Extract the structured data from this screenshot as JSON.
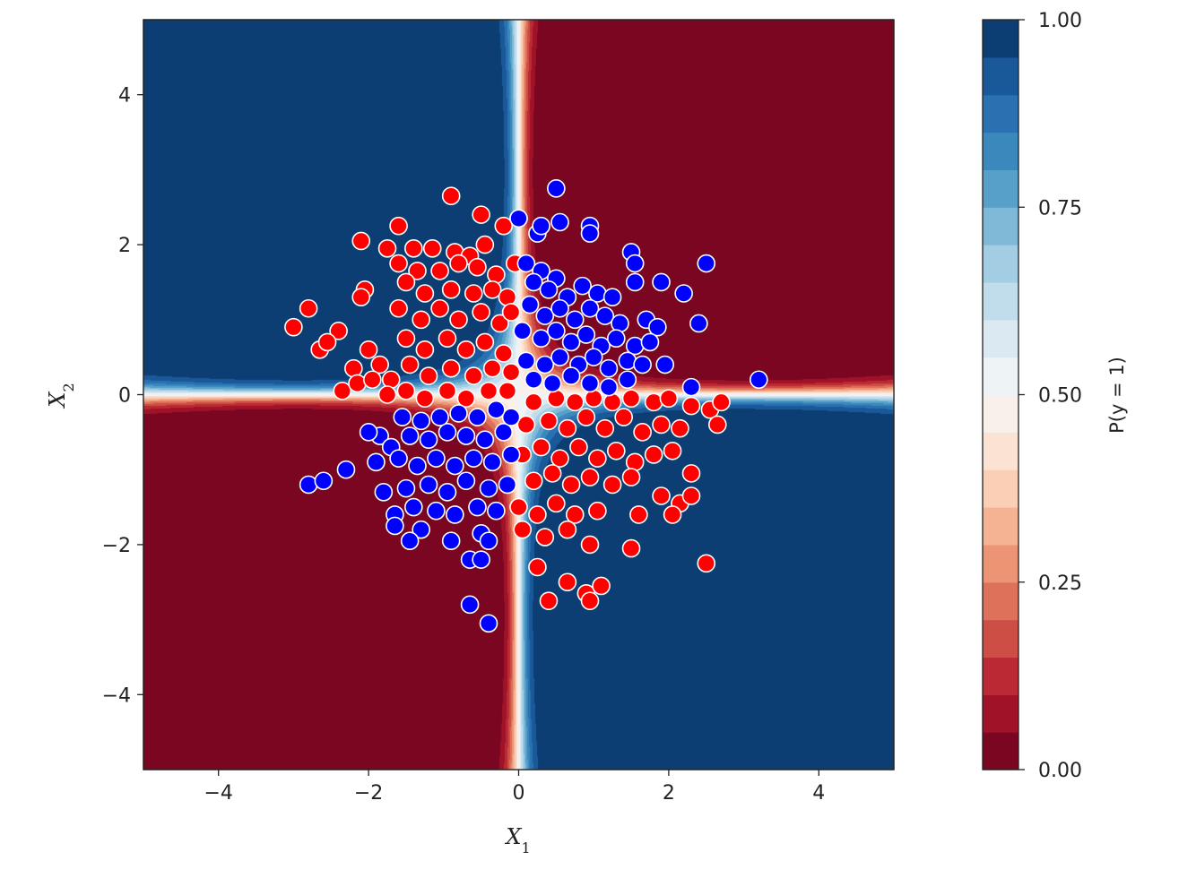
{
  "chart_data": {
    "type": "scatter",
    "title": "",
    "xlabel": "X",
    "xlabel_sub": "1",
    "ylabel": "X",
    "ylabel_sub": "2",
    "xlim": [
      -5,
      5
    ],
    "ylim": [
      -5,
      5
    ],
    "xticks": [
      -4,
      -2,
      0,
      2,
      4
    ],
    "yticks": [
      -4,
      -2,
      0,
      2,
      4
    ],
    "xtick_labels": [
      "−4",
      "−2",
      "0",
      "2",
      "4"
    ],
    "ytick_labels": [
      "−4",
      "−2",
      "0",
      "2",
      "4"
    ],
    "grid": false,
    "background": "filled probability contours P(y=1) with levels 0.00–1.00, RdBu colormap",
    "colorbar": {
      "label": "P(y = 1)",
      "range": [
        0,
        1
      ],
      "levels": 21,
      "ticks": [
        0,
        0.25,
        0.5,
        0.75,
        1
      ],
      "tick_labels": [
        "0.00",
        "0.25",
        "0.50",
        "0.75",
        "1.00"
      ],
      "low_color": "#67001f",
      "mid_color": "#f7f7f7",
      "high_color": "#053061"
    },
    "series": [
      {
        "color": "#ff0000",
        "points": [
          [
            -0.9,
            2.65
          ],
          [
            -0.5,
            2.4
          ],
          [
            -1.6,
            2.25
          ],
          [
            -2.1,
            2.05
          ],
          [
            -1.75,
            1.95
          ],
          [
            -1.4,
            1.95
          ],
          [
            -1.15,
            1.95
          ],
          [
            -0.85,
            1.9
          ],
          [
            -0.45,
            2.0
          ],
          [
            -0.65,
            1.85
          ],
          [
            -0.2,
            2.25
          ],
          [
            0.0,
            2.35
          ],
          [
            -1.6,
            1.75
          ],
          [
            -1.35,
            1.65
          ],
          [
            -1.05,
            1.65
          ],
          [
            -0.8,
            1.75
          ],
          [
            -0.55,
            1.7
          ],
          [
            -0.3,
            1.6
          ],
          [
            -0.05,
            1.75
          ],
          [
            -2.05,
            1.4
          ],
          [
            -2.1,
            1.3
          ],
          [
            -1.5,
            1.5
          ],
          [
            -1.25,
            1.35
          ],
          [
            -0.9,
            1.4
          ],
          [
            -0.6,
            1.35
          ],
          [
            -0.35,
            1.4
          ],
          [
            -0.15,
            1.3
          ],
          [
            -2.8,
            1.15
          ],
          [
            -3.0,
            0.9
          ],
          [
            -2.65,
            0.6
          ],
          [
            -2.4,
            0.85
          ],
          [
            -2.55,
            0.7
          ],
          [
            -1.6,
            1.15
          ],
          [
            -1.3,
            1.0
          ],
          [
            -1.05,
            1.15
          ],
          [
            -0.8,
            1.0
          ],
          [
            -0.5,
            1.1
          ],
          [
            -0.25,
            0.95
          ],
          [
            -0.1,
            1.1
          ],
          [
            -2.0,
            0.6
          ],
          [
            -2.2,
            0.35
          ],
          [
            -2.35,
            0.05
          ],
          [
            -1.85,
            0.4
          ],
          [
            -1.5,
            0.75
          ],
          [
            -1.25,
            0.6
          ],
          [
            -0.95,
            0.75
          ],
          [
            -0.7,
            0.6
          ],
          [
            -0.45,
            0.7
          ],
          [
            -0.2,
            0.55
          ],
          [
            -2.15,
            0.15
          ],
          [
            -1.95,
            0.2
          ],
          [
            -1.7,
            0.2
          ],
          [
            -1.45,
            0.4
          ],
          [
            -1.2,
            0.25
          ],
          [
            -0.9,
            0.35
          ],
          [
            -0.6,
            0.25
          ],
          [
            -0.35,
            0.35
          ],
          [
            -0.1,
            0.3
          ],
          [
            -1.75,
            0.0
          ],
          [
            -1.5,
            0.05
          ],
          [
            -1.25,
            -0.05
          ],
          [
            -0.95,
            0.05
          ],
          [
            -0.7,
            -0.05
          ],
          [
            -0.4,
            0.05
          ],
          [
            -0.15,
            0.05
          ],
          [
            0.2,
            -0.1
          ],
          [
            0.5,
            -0.05
          ],
          [
            0.75,
            -0.1
          ],
          [
            1.0,
            -0.05
          ],
          [
            1.25,
            -0.1
          ],
          [
            1.5,
            -0.05
          ],
          [
            1.8,
            -0.1
          ],
          [
            2.0,
            -0.05
          ],
          [
            2.3,
            -0.15
          ],
          [
            2.55,
            -0.2
          ],
          [
            2.7,
            -0.1
          ],
          [
            2.65,
            -0.4
          ],
          [
            0.1,
            -0.4
          ],
          [
            0.4,
            -0.35
          ],
          [
            0.65,
            -0.45
          ],
          [
            0.9,
            -0.3
          ],
          [
            1.15,
            -0.45
          ],
          [
            1.4,
            -0.3
          ],
          [
            1.65,
            -0.5
          ],
          [
            1.9,
            -0.4
          ],
          [
            2.15,
            -0.45
          ],
          [
            0.05,
            -0.8
          ],
          [
            0.3,
            -0.7
          ],
          [
            0.55,
            -0.85
          ],
          [
            0.8,
            -0.7
          ],
          [
            1.05,
            -0.85
          ],
          [
            1.3,
            -0.75
          ],
          [
            1.55,
            -0.9
          ],
          [
            1.8,
            -0.8
          ],
          [
            2.05,
            -0.75
          ],
          [
            0.2,
            -1.15
          ],
          [
            0.45,
            -1.05
          ],
          [
            0.7,
            -1.2
          ],
          [
            0.95,
            -1.1
          ],
          [
            1.25,
            -1.2
          ],
          [
            1.5,
            -1.1
          ],
          [
            1.9,
            -1.35
          ],
          [
            2.3,
            -1.05
          ],
          [
            2.15,
            -1.45
          ],
          [
            0.0,
            -1.5
          ],
          [
            0.25,
            -1.6
          ],
          [
            0.5,
            -1.45
          ],
          [
            0.75,
            -1.6
          ],
          [
            1.05,
            -1.55
          ],
          [
            1.6,
            -1.6
          ],
          [
            2.05,
            -1.6
          ],
          [
            2.3,
            -1.35
          ],
          [
            0.05,
            -1.8
          ],
          [
            0.35,
            -1.9
          ],
          [
            0.65,
            -1.8
          ],
          [
            0.95,
            -2.0
          ],
          [
            1.5,
            -2.05
          ],
          [
            2.5,
            -2.25
          ],
          [
            0.25,
            -2.3
          ],
          [
            0.65,
            -2.5
          ],
          [
            0.9,
            -2.65
          ],
          [
            1.1,
            -2.55
          ],
          [
            0.95,
            -2.75
          ],
          [
            0.4,
            -2.75
          ]
        ]
      },
      {
        "color": "#0000ff",
        "points": [
          [
            0.5,
            2.75
          ],
          [
            0.55,
            2.3
          ],
          [
            0.95,
            2.25
          ],
          [
            0.95,
            2.15
          ],
          [
            0.25,
            2.15
          ],
          [
            0.0,
            2.35
          ],
          [
            0.3,
            2.25
          ],
          [
            1.5,
            1.9
          ],
          [
            1.55,
            1.75
          ],
          [
            1.55,
            1.5
          ],
          [
            2.5,
            1.75
          ],
          [
            1.9,
            1.5
          ],
          [
            2.2,
            1.35
          ],
          [
            2.4,
            0.95
          ],
          [
            0.1,
            1.75
          ],
          [
            0.3,
            1.65
          ],
          [
            0.5,
            1.55
          ],
          [
            0.2,
            1.5
          ],
          [
            0.4,
            1.4
          ],
          [
            0.65,
            1.3
          ],
          [
            0.85,
            1.45
          ],
          [
            1.05,
            1.35
          ],
          [
            1.25,
            1.3
          ],
          [
            0.15,
            1.2
          ],
          [
            0.35,
            1.05
          ],
          [
            0.55,
            1.15
          ],
          [
            0.75,
            1.0
          ],
          [
            0.95,
            1.15
          ],
          [
            1.15,
            1.05
          ],
          [
            1.35,
            0.95
          ],
          [
            1.7,
            1.0
          ],
          [
            1.85,
            0.9
          ],
          [
            0.05,
            0.85
          ],
          [
            0.3,
            0.75
          ],
          [
            0.5,
            0.85
          ],
          [
            0.7,
            0.7
          ],
          [
            0.9,
            0.8
          ],
          [
            1.1,
            0.65
          ],
          [
            1.3,
            0.75
          ],
          [
            1.55,
            0.65
          ],
          [
            1.75,
            0.7
          ],
          [
            0.1,
            0.45
          ],
          [
            0.35,
            0.4
          ],
          [
            0.55,
            0.5
          ],
          [
            0.8,
            0.4
          ],
          [
            1.0,
            0.5
          ],
          [
            1.2,
            0.35
          ],
          [
            1.45,
            0.45
          ],
          [
            1.65,
            0.4
          ],
          [
            1.95,
            0.4
          ],
          [
            0.2,
            0.2
          ],
          [
            0.45,
            0.15
          ],
          [
            0.7,
            0.25
          ],
          [
            0.95,
            0.15
          ],
          [
            1.2,
            0.1
          ],
          [
            1.45,
            0.2
          ],
          [
            2.3,
            0.1
          ],
          [
            3.2,
            0.2
          ],
          [
            -1.85,
            -0.55
          ],
          [
            -2.0,
            -0.5
          ],
          [
            -1.7,
            -0.7
          ],
          [
            -1.45,
            -0.55
          ],
          [
            -1.2,
            -0.6
          ],
          [
            -0.95,
            -0.5
          ],
          [
            -0.7,
            -0.55
          ],
          [
            -0.45,
            -0.6
          ],
          [
            -0.2,
            -0.5
          ],
          [
            -1.9,
            -0.9
          ],
          [
            -2.3,
            -1.0
          ],
          [
            -1.6,
            -0.85
          ],
          [
            -1.35,
            -0.95
          ],
          [
            -1.1,
            -0.85
          ],
          [
            -0.85,
            -0.95
          ],
          [
            -0.6,
            -0.85
          ],
          [
            -0.35,
            -0.9
          ],
          [
            -0.1,
            -0.8
          ],
          [
            -2.8,
            -1.2
          ],
          [
            -2.6,
            -1.15
          ],
          [
            -1.8,
            -1.3
          ],
          [
            -1.5,
            -1.25
          ],
          [
            -1.2,
            -1.2
          ],
          [
            -0.95,
            -1.3
          ],
          [
            -0.7,
            -1.15
          ],
          [
            -0.4,
            -1.25
          ],
          [
            -0.15,
            -1.2
          ],
          [
            -1.65,
            -1.6
          ],
          [
            -1.4,
            -1.5
          ],
          [
            -1.1,
            -1.55
          ],
          [
            -0.85,
            -1.6
          ],
          [
            -0.55,
            -1.5
          ],
          [
            -0.3,
            -1.55
          ],
          [
            -1.65,
            -1.75
          ],
          [
            -1.3,
            -1.8
          ],
          [
            -0.9,
            -1.95
          ],
          [
            -0.5,
            -1.85
          ],
          [
            -0.4,
            -1.95
          ],
          [
            -1.45,
            -1.95
          ],
          [
            -0.65,
            -2.2
          ],
          [
            -0.5,
            -2.2
          ],
          [
            -0.65,
            -2.8
          ],
          [
            -0.4,
            -3.05
          ],
          [
            -0.1,
            -0.3
          ],
          [
            -0.3,
            -0.2
          ],
          [
            -0.55,
            -0.3
          ],
          [
            -0.8,
            -0.25
          ],
          [
            -1.05,
            -0.3
          ],
          [
            -1.3,
            -0.35
          ],
          [
            -1.55,
            -0.3
          ]
        ]
      }
    ]
  }
}
